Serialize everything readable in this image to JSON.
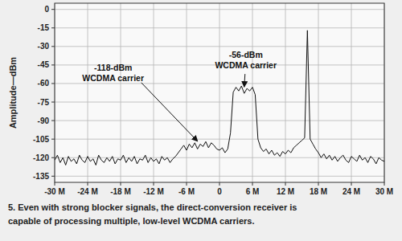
{
  "chart_data": {
    "type": "line",
    "ylabel": "Amplitude—dBm",
    "color": "#111111",
    "grid": true,
    "xlim": [
      -30,
      30
    ],
    "xticks": [
      {
        "value": -30,
        "label": "-30 M"
      },
      {
        "value": -24,
        "label": "-24 M"
      },
      {
        "value": -18,
        "label": "-18 M"
      },
      {
        "value": -12,
        "label": "-12 M"
      },
      {
        "value": -6,
        "label": "-6 M"
      },
      0,
      {
        "value": 6,
        "label": "6 M"
      },
      {
        "value": 12,
        "label": "12 M"
      },
      {
        "value": 18,
        "label": "18 M"
      },
      {
        "value": 24,
        "label": "24 M"
      },
      {
        "value": 30,
        "label": "30 M"
      }
    ],
    "ylim": [
      -140,
      5
    ],
    "yticks": [
      0,
      -15,
      -30,
      -45,
      -60,
      -75,
      -90,
      -105,
      -120,
      -135
    ],
    "x": [
      -30,
      -29.5,
      -29,
      -28.5,
      -28,
      -27.5,
      -27,
      -26.5,
      -26,
      -25.5,
      -25,
      -24.5,
      -24,
      -23.5,
      -23,
      -22.5,
      -22,
      -21.5,
      -21,
      -20.5,
      -20,
      -19.5,
      -19,
      -18.5,
      -18,
      -17.5,
      -17,
      -16.5,
      -16,
      -15.5,
      -15,
      -14.5,
      -14,
      -13.5,
      -13,
      -12.5,
      -12,
      -11.5,
      -11,
      -10.5,
      -10,
      -9.5,
      -9,
      -8.5,
      -8,
      -7.5,
      -7,
      -6.5,
      -6,
      -5.5,
      -5,
      -4.5,
      -4,
      -3.5,
      -3,
      -2.5,
      -2,
      -1.5,
      -1,
      -0.5,
      0,
      0.5,
      1,
      1.5,
      2,
      2.5,
      3,
      3.5,
      4,
      4.5,
      5,
      5.5,
      6,
      6.5,
      7,
      7.5,
      8,
      8.5,
      9,
      9.5,
      10,
      10.5,
      11,
      11.5,
      12,
      12.5,
      13,
      13.5,
      14,
      14.5,
      15,
      15.5,
      16,
      16.5,
      17,
      17.5,
      18,
      18.5,
      19,
      19.5,
      20,
      20.5,
      21,
      21.5,
      22,
      22.5,
      23,
      23.5,
      24,
      24.5,
      25,
      25.5,
      26,
      26.5,
      27,
      27.5,
      28,
      28.5,
      29,
      29.5,
      30
    ],
    "values": [
      -122,
      -118,
      -124,
      -120,
      -126,
      -119,
      -123,
      -121,
      -125,
      -118,
      -122,
      -124,
      -119,
      -123,
      -121,
      -126,
      -118,
      -122,
      -124,
      -120,
      -123,
      -119,
      -125,
      -121,
      -122,
      -118,
      -124,
      -120,
      -123,
      -119,
      -125,
      -121,
      -122,
      -118,
      -124,
      -120,
      -123,
      -121,
      -125,
      -119,
      -122,
      -120,
      -124,
      -121,
      -119,
      -116,
      -113,
      -110,
      -114,
      -109,
      -112,
      -108,
      -113,
      -109,
      -111,
      -107,
      -112,
      -108,
      -110,
      -113,
      -114,
      -112,
      -116,
      -113,
      -100,
      -67,
      -63,
      -66,
      -62,
      -68,
      -64,
      -66,
      -63,
      -69,
      -105,
      -112,
      -115,
      -113,
      -117,
      -114,
      -118,
      -116,
      -119,
      -115,
      -117,
      -114,
      -116,
      -112,
      -110,
      -108,
      -106,
      -104,
      -17,
      -105,
      -109,
      -113,
      -116,
      -120,
      -117,
      -121,
      -118,
      -122,
      -119,
      -123,
      -120,
      -118,
      -122,
      -124,
      -119,
      -121,
      -123,
      -118,
      -122,
      -120,
      -124,
      -119,
      -121,
      -125,
      -120,
      -122,
      -123
    ],
    "annotations": [
      {
        "lines": [
          "-118-dBm",
          "WCDMA carrier"
        ],
        "x": -4,
        "y": -108
      },
      {
        "lines": [
          "-56-dBm",
          "WCDMA carrier"
        ],
        "x": 4.5,
        "y": -64
      }
    ],
    "caption": [
      "5. Even with strong blocker signals, the direct-conversion receiver is",
      "capable of processing multiple, low-level WCDMA carriers."
    ]
  }
}
